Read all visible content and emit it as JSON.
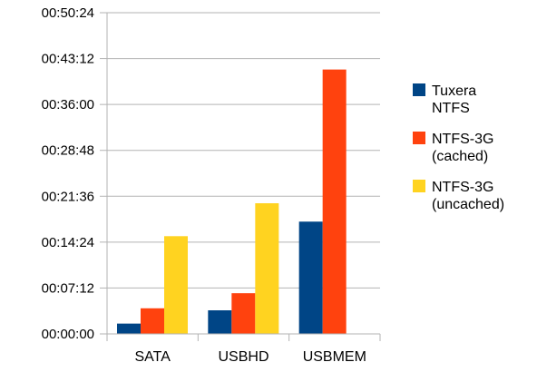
{
  "chart_data": {
    "type": "bar",
    "categories": [
      "SATA",
      "USBHD",
      "USBMEM"
    ],
    "series": [
      {
        "name": "Tuxera NTFS",
        "name_lines": [
          "Tuxera",
          "NTFS"
        ],
        "color": "#004586",
        "values": [
          "00:01:37",
          "00:03:42",
          "00:17:37"
        ]
      },
      {
        "name": "NTFS-3G (cached)",
        "name_lines": [
          "NTFS-3G",
          "(cached)"
        ],
        "color": "#ff420e",
        "values": [
          "00:04:01",
          "00:06:23",
          "00:41:29"
        ]
      },
      {
        "name": "NTFS-3G (uncached)",
        "name_lines": [
          "NTFS-3G",
          "(uncached)"
        ],
        "color": "#ffd320",
        "values": [
          "00:15:20",
          "00:20:30",
          "00:00:00"
        ]
      }
    ],
    "y_ticks": [
      "00:00:00",
      "00:07:12",
      "00:14:24",
      "00:21:36",
      "00:28:48",
      "00:36:00",
      "00:43:12",
      "00:50:24"
    ],
    "ylim": [
      "00:00:00",
      "00:50:24"
    ],
    "grid": true,
    "legend_position": "right",
    "title": "",
    "xlabel": "",
    "ylabel": ""
  }
}
